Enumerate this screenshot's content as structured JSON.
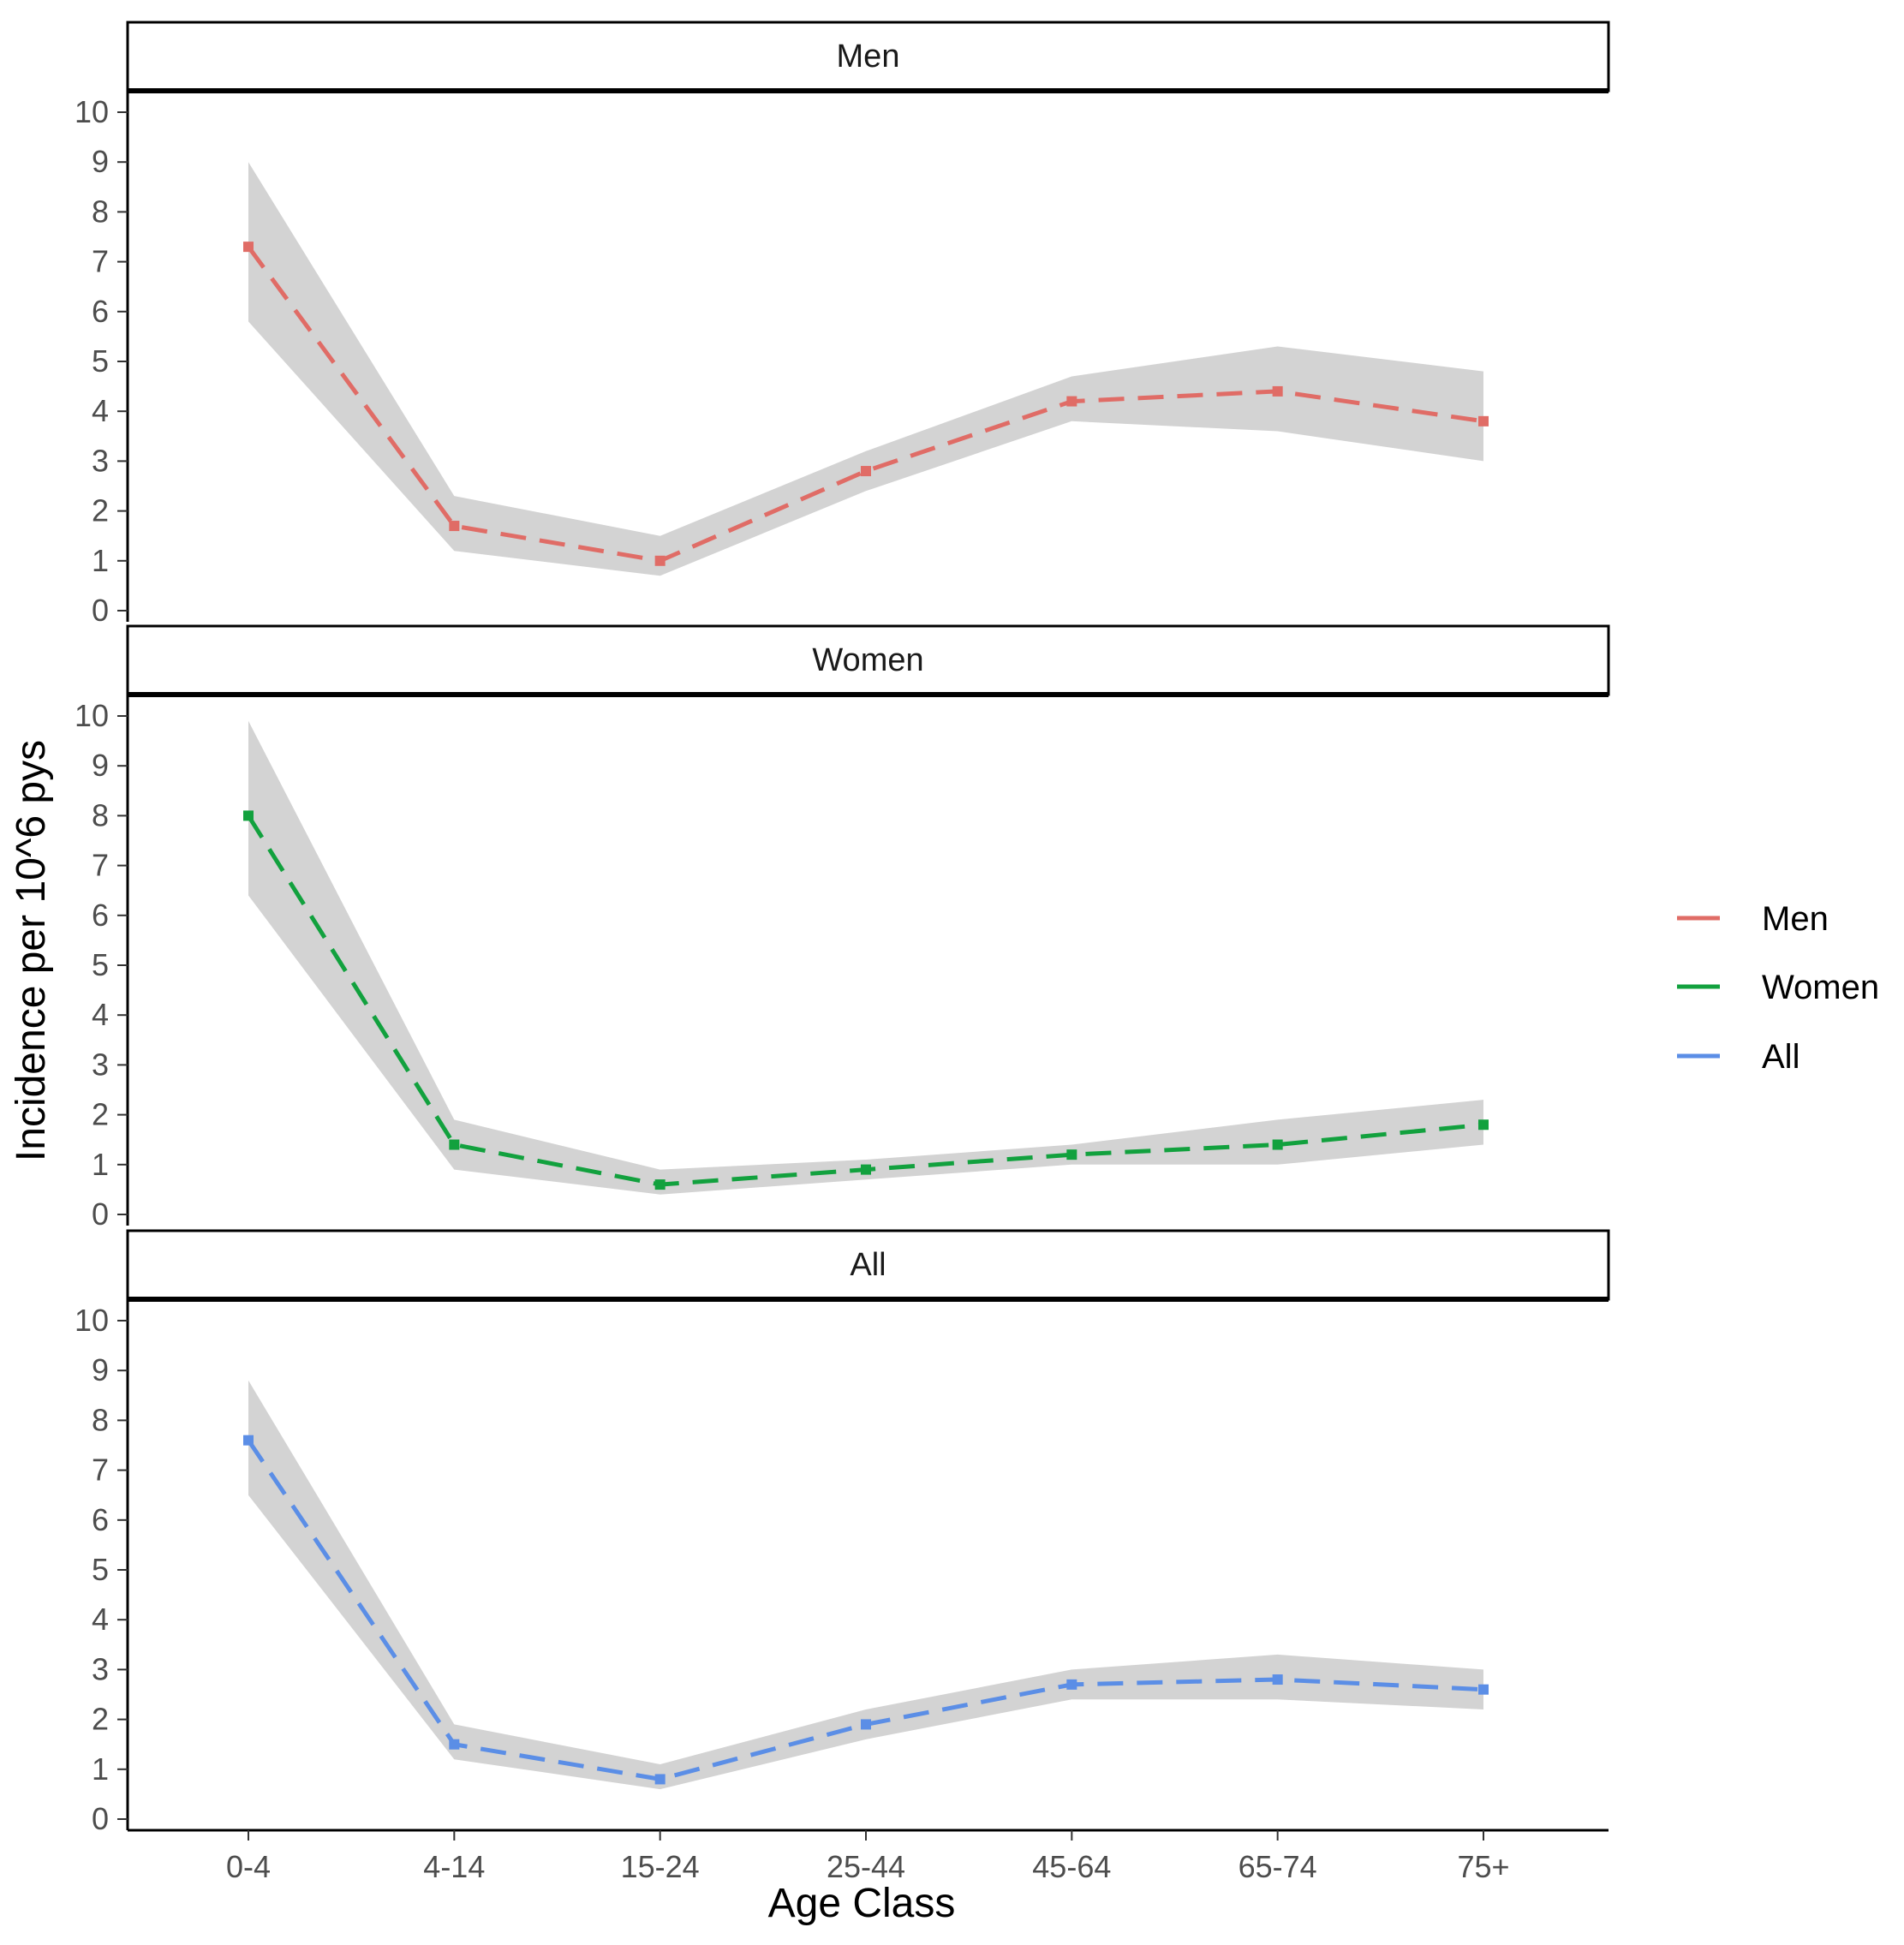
{
  "chart_data": {
    "type": "line",
    "categories": [
      "0-4",
      "4-14",
      "15-24",
      "25-44",
      "45-64",
      "65-74",
      "75+"
    ],
    "xlabel": "Age Class",
    "ylabel": "Incidence per 10^6 pys",
    "ylim": [
      0,
      10
    ],
    "yticks": [
      0,
      1,
      2,
      3,
      4,
      5,
      6,
      7,
      8,
      9,
      10
    ],
    "grid": false,
    "legend_position": "right",
    "panels": [
      {
        "title": "Men",
        "series_name": "Men",
        "color": "#e06c66",
        "values": [
          7.3,
          1.7,
          1.0,
          2.8,
          4.2,
          4.4,
          3.8
        ],
        "lower": [
          5.8,
          1.2,
          0.7,
          2.4,
          3.8,
          3.6,
          3.0
        ],
        "upper": [
          9.0,
          2.3,
          1.5,
          3.2,
          4.7,
          5.3,
          4.8
        ]
      },
      {
        "title": "Women",
        "series_name": "Women",
        "color": "#12a13e",
        "values": [
          8.0,
          1.4,
          0.6,
          0.9,
          1.2,
          1.4,
          1.8
        ],
        "lower": [
          6.4,
          0.9,
          0.4,
          0.7,
          1.0,
          1.0,
          1.4
        ],
        "upper": [
          9.9,
          1.9,
          0.9,
          1.1,
          1.4,
          1.9,
          2.3
        ]
      },
      {
        "title": "All",
        "series_name": "All",
        "color": "#5b8ee6",
        "values": [
          7.6,
          1.5,
          0.8,
          1.9,
          2.7,
          2.8,
          2.6
        ],
        "lower": [
          6.5,
          1.2,
          0.6,
          1.6,
          2.4,
          2.4,
          2.2
        ],
        "upper": [
          8.8,
          1.9,
          1.1,
          2.2,
          3.0,
          3.3,
          3.0
        ]
      }
    ],
    "legend": [
      {
        "name": "Men",
        "color": "#e06c66"
      },
      {
        "name": "Women",
        "color": "#12a13e"
      },
      {
        "name": "All",
        "color": "#5b8ee6"
      }
    ]
  }
}
